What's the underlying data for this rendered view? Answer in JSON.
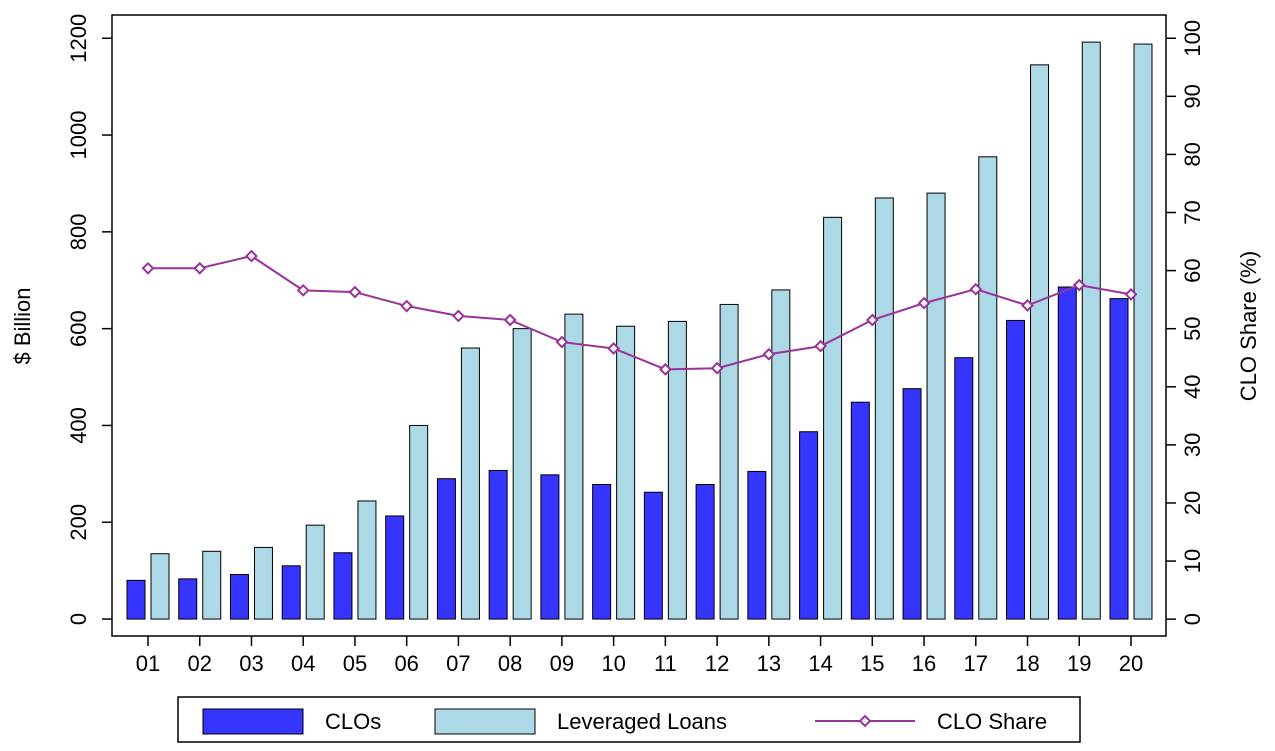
{
  "chart_data": {
    "type": "bar-line",
    "y_label": "$ Billion",
    "y2_label": "CLO Share (%)",
    "categories": [
      "01",
      "02",
      "03",
      "04",
      "05",
      "06",
      "07",
      "08",
      "09",
      "10",
      "11",
      "12",
      "13",
      "14",
      "15",
      "16",
      "17",
      "18",
      "19",
      "20"
    ],
    "series": [
      {
        "name": "CLOs",
        "type": "bar",
        "color": "#3535ff",
        "values": [
          80,
          83,
          92,
          110,
          137,
          213,
          290,
          307,
          298,
          278,
          262,
          278,
          305,
          387,
          448,
          476,
          540,
          617,
          686,
          662
        ]
      },
      {
        "name": "Leveraged Loans",
        "type": "bar",
        "color": "#add8e6",
        "values": [
          135,
          140,
          148,
          194,
          244,
          400,
          560,
          600,
          630,
          605,
          615,
          650,
          680,
          830,
          870,
          880,
          955,
          1145,
          1192,
          1188
        ]
      },
      {
        "name": "CLO Share",
        "type": "line",
        "axis": "y2",
        "color": "#993399",
        "values": [
          60.4,
          60.4,
          62.5,
          56.6,
          56.3,
          53.9,
          52.2,
          51.5,
          47.7,
          46.6,
          43.0,
          43.2,
          45.6,
          47.0,
          51.5,
          54.4,
          56.8,
          54.0,
          57.5,
          55.9
        ]
      }
    ],
    "ylim": [
      -35,
      1248
    ],
    "yticks": [
      0,
      200,
      400,
      600,
      800,
      1000,
      1200
    ],
    "y2lim": [
      -2.9,
      104
    ],
    "y2ticks": [
      0,
      10,
      20,
      30,
      40,
      50,
      60,
      70,
      80,
      90,
      100
    ],
    "grid": false,
    "legend": "bottom"
  }
}
